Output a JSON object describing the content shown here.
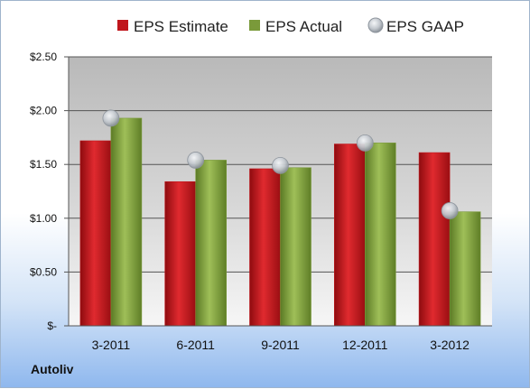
{
  "company": "Autoliv",
  "chart_data": {
    "type": "bar",
    "title": "",
    "xlabel": "",
    "ylabel": "",
    "categories": [
      "3-2011",
      "6-2011",
      "9-2011",
      "12-2011",
      "3-2012"
    ],
    "series": [
      {
        "name": "EPS Estimate",
        "kind": "bar",
        "color": "#c0161c",
        "values": [
          1.72,
          1.34,
          1.46,
          1.69,
          1.61
        ]
      },
      {
        "name": "EPS Actual",
        "kind": "bar",
        "color": "#7a9a3a",
        "values": [
          1.93,
          1.54,
          1.47,
          1.7,
          1.06
        ]
      },
      {
        "name": "EPS GAAP",
        "kind": "marker",
        "color": "#c8ccd2",
        "values": [
          1.93,
          1.54,
          1.49,
          1.7,
          1.07
        ]
      }
    ],
    "ylim": [
      0,
      2.5
    ],
    "yticks": [
      0,
      0.5,
      1.0,
      1.5,
      2.0,
      2.5
    ],
    "ytick_labels": [
      "$-",
      "$0.50",
      "$1.00",
      "$1.50",
      "$2.00",
      "$2.50"
    ],
    "grid": true,
    "legend_position": "top"
  }
}
